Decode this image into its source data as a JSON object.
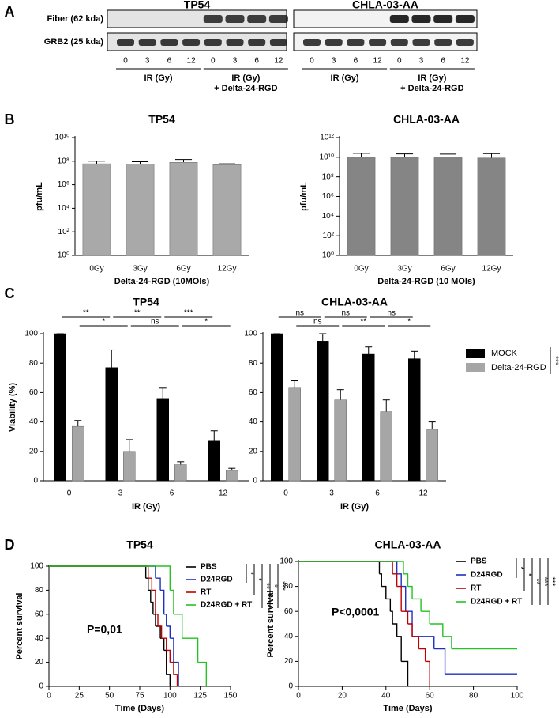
{
  "blot": {
    "panel": "A",
    "rows": [
      "Fiber (62 kda)",
      "GRB2 (25 kda)"
    ],
    "groups": [
      {
        "title": "TP54",
        "lanes": [
          "0",
          "3",
          "6",
          "12",
          "0",
          "3",
          "6",
          "12"
        ],
        "conditions": [
          [
            "IR (Gy)"
          ],
          [
            "IR (Gy)",
            "+ Delta-24-RGD"
          ]
        ]
      },
      {
        "title": "CHLA-03-AA",
        "lanes": [
          "0",
          "3",
          "6",
          "12",
          "0",
          "3",
          "6",
          "12"
        ],
        "conditions": [
          [
            "IR (Gy)"
          ],
          [
            "IR (Gy)",
            "+ Delta-24-RGD"
          ]
        ]
      }
    ]
  },
  "chart_data": [
    {
      "type": "bar",
      "panel": "B",
      "title": "TP54",
      "x_label": "Delta-24-RGD (10MOIs)",
      "y_label": "pfu/mL",
      "log": true,
      "categories": [
        "0Gy",
        "3Gy",
        "6Gy",
        "12Gy"
      ],
      "color": "#a9a9a9",
      "values": [
        60000000,
        55000000,
        80000000,
        50000000
      ],
      "errors": [
        40000000,
        35000000,
        60000000,
        10000000
      ],
      "ylim": [
        1,
        10000000000
      ],
      "yticks": [
        {
          "value": 1,
          "label": "10⁰"
        },
        {
          "value": 100,
          "label": "10²"
        },
        {
          "value": 10000,
          "label": "10⁴"
        },
        {
          "value": 1000000,
          "label": "10⁶"
        },
        {
          "value": 100000000,
          "label": "10⁸"
        },
        {
          "value": 10000000000,
          "label": "10¹⁰"
        }
      ]
    },
    {
      "type": "bar",
      "title": "CHLA-03-AA",
      "x_label": "Delta-24-RGD (10 MOIs)",
      "y_label": "pfu/mL",
      "log": true,
      "categories": [
        "0Gy",
        "3Gy",
        "6Gy",
        "12Gy"
      ],
      "color": "#858585",
      "values": [
        10000000000,
        10000000000,
        9000000000,
        8500000000
      ],
      "errors": [
        15000000000,
        12000000000,
        12000000000,
        15000000000
      ],
      "ylim": [
        1,
        1000000000000
      ],
      "yticks": [
        {
          "value": 1,
          "label": "10⁰"
        },
        {
          "value": 100,
          "label": "10²"
        },
        {
          "value": 10000,
          "label": "10⁴"
        },
        {
          "value": 1000000,
          "label": "10⁶"
        },
        {
          "value": 100000000,
          "label": "10⁸"
        },
        {
          "value": 10000000000,
          "label": "10¹⁰"
        },
        {
          "value": 1000000000000,
          "label": "10¹²"
        }
      ]
    },
    {
      "type": "bar",
      "panel": "C",
      "title": "TP54",
      "x_label": "IR (Gy)",
      "y_label": "Viability (%)",
      "categories": [
        "0",
        "3",
        "6",
        "12"
      ],
      "series": [
        {
          "color": "#000000",
          "values": [
            100,
            77,
            56,
            27
          ],
          "errors": [
            0,
            12,
            7,
            7
          ]
        },
        {
          "color": "#a6a6a6",
          "values": [
            37,
            20,
            11,
            7
          ],
          "errors": [
            4,
            8,
            2,
            1.5
          ]
        }
      ],
      "comparisons": [
        [
          "**",
          "**",
          "***"
        ],
        [
          "*",
          "ns",
          "*"
        ]
      ],
      "ylim": [
        0,
        100
      ],
      "yticks": [
        0,
        20,
        40,
        60,
        80,
        100
      ]
    },
    {
      "type": "bar",
      "title": "CHLA-03-AA",
      "x_label": "IR (Gy)",
      "categories": [
        "0",
        "3",
        "6",
        "12"
      ],
      "series": [
        {
          "name": "MOCK",
          "color": "#000000",
          "values": [
            100,
            95,
            86,
            83
          ],
          "errors": [
            0,
            5,
            5,
            5
          ]
        },
        {
          "name": "Delta-24-RGD",
          "color": "#a6a6a6",
          "values": [
            63,
            55,
            47,
            35
          ],
          "errors": [
            5,
            7,
            8,
            5
          ]
        }
      ],
      "comparisons": [
        [
          "ns",
          "ns",
          "ns"
        ],
        [
          "ns",
          "**",
          "*"
        ]
      ],
      "legend_significance": "***",
      "ylim": [
        0,
        100
      ],
      "yticks": [
        0,
        20,
        40,
        60,
        80,
        100
      ]
    },
    {
      "type": "survival",
      "panel": "D",
      "title": "TP54",
      "x_label": "Time (Days)",
      "y_label": "Percent survival",
      "annotation": "P=0,01",
      "series": [
        {
          "name": "PBS",
          "color": "#000000",
          "x": [
            0,
            80,
            82,
            84,
            86,
            88,
            92,
            95,
            97,
            100
          ],
          "values": [
            100,
            90,
            80,
            70,
            60,
            50,
            40,
            30,
            10,
            0
          ]
        },
        {
          "name": "D24RGD",
          "color": "#1f2fbf",
          "x": [
            0,
            88,
            92,
            95,
            97,
            100,
            103,
            107
          ],
          "values": [
            100,
            90,
            80,
            60,
            50,
            40,
            20,
            0
          ]
        },
        {
          "name": "RT",
          "color": "#c00000",
          "x": [
            0,
            82,
            85,
            88,
            90,
            93,
            97,
            100,
            103,
            106
          ],
          "values": [
            100,
            90,
            80,
            60,
            50,
            40,
            30,
            20,
            10,
            0
          ]
        },
        {
          "name": "D24RGD + RT",
          "color": "#22c322",
          "x": [
            0,
            100,
            103,
            110,
            123,
            130
          ],
          "values": [
            100,
            80,
            60,
            40,
            20,
            0
          ]
        }
      ],
      "significance": [
        "*",
        "*",
        "**",
        "*",
        "***"
      ],
      "xlim": [
        0,
        150
      ],
      "xticks": [
        0,
        25,
        50,
        75,
        100,
        125,
        150
      ],
      "ylim": [
        0,
        100
      ],
      "yticks": [
        0,
        20,
        40,
        60,
        80,
        100
      ]
    },
    {
      "type": "survival",
      "title": "CHLA-03-AA",
      "x_label": "Time (Days)",
      "y_label": "Percent survival",
      "annotation": "P<0,0001",
      "series": [
        {
          "name": "PBS",
          "color": "#000000",
          "x": [
            0,
            37,
            38,
            40,
            42,
            43,
            45,
            47,
            50
          ],
          "values": [
            100,
            90,
            80,
            70,
            60,
            50,
            40,
            20,
            0
          ]
        },
        {
          "name": "D24RGD",
          "color": "#1f2fbf",
          "x": [
            0,
            45,
            47,
            49,
            52,
            62,
            67,
            100
          ],
          "values": [
            100,
            90,
            80,
            60,
            40,
            30,
            10,
            10
          ]
        },
        {
          "name": "RT",
          "color": "#c00000",
          "x": [
            0,
            43,
            45,
            47,
            50,
            52,
            55,
            58,
            60
          ],
          "values": [
            100,
            90,
            80,
            60,
            50,
            40,
            30,
            20,
            0
          ]
        },
        {
          "name": "D24RGD + RT",
          "color": "#22c322",
          "x": [
            0,
            48,
            50,
            52,
            56,
            60,
            66,
            70,
            100
          ],
          "values": [
            100,
            90,
            80,
            70,
            60,
            50,
            40,
            30,
            30
          ]
        }
      ],
      "significance": [
        "*",
        "*",
        "**",
        "***",
        "***"
      ],
      "xlim": [
        0,
        100
      ],
      "xticks": [
        0,
        20,
        40,
        60,
        80,
        100
      ],
      "ylim": [
        0,
        100
      ],
      "yticks": [
        0,
        20,
        40,
        60,
        80,
        100
      ]
    }
  ]
}
